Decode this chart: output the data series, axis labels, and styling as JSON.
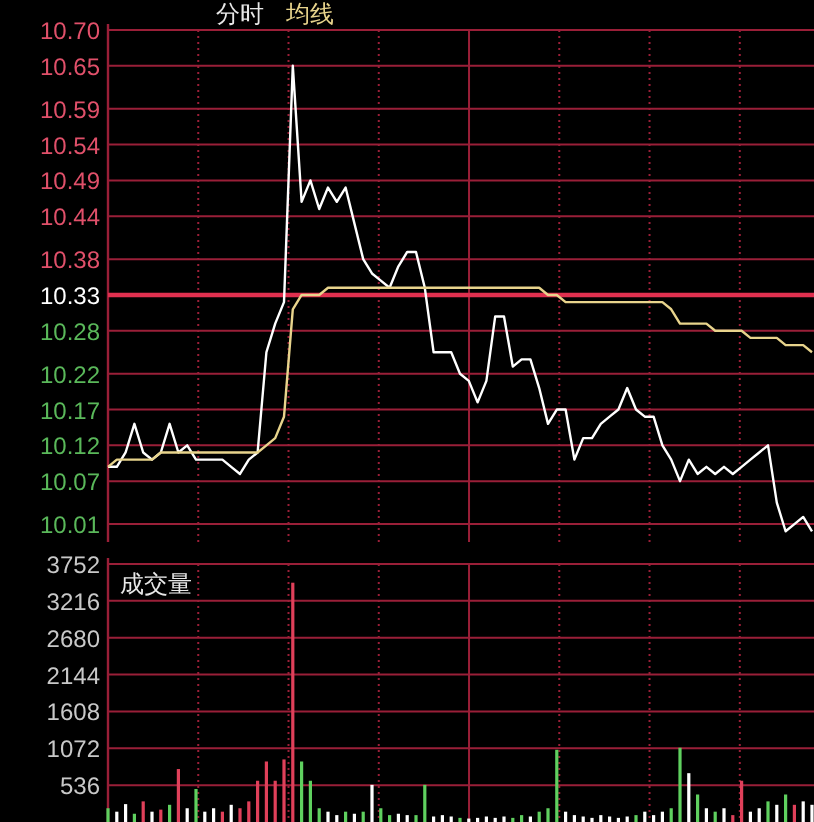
{
  "chart_data": [
    {
      "type": "line",
      "title": "分时",
      "categories": [
        null,
        null,
        null,
        null,
        null,
        null,
        null,
        null,
        null,
        null,
        null,
        null,
        null,
        null,
        null,
        null,
        null,
        null,
        null,
        null,
        null,
        null,
        null,
        null,
        null,
        null,
        null,
        null,
        null,
        null,
        null,
        null,
        null,
        null,
        null,
        null,
        null,
        null,
        null,
        null,
        null,
        null,
        null,
        null,
        null,
        null,
        null,
        null,
        null,
        null,
        null,
        null,
        null,
        null,
        null,
        null,
        null,
        null,
        null,
        null,
        null,
        null,
        null,
        null,
        null,
        null,
        null,
        null,
        null,
        null,
        null,
        null,
        null,
        null,
        null,
        null,
        null,
        null,
        null,
        null,
        null
      ],
      "series": [
        {
          "color": "#ffffff",
          "values": [
            10.09,
            10.09,
            10.11,
            10.15,
            10.11,
            10.1,
            10.11,
            10.15,
            10.11,
            10.12,
            10.1,
            10.1,
            10.1,
            10.1,
            10.09,
            10.08,
            10.1,
            10.11,
            10.25,
            10.29,
            10.32,
            10.65,
            10.46,
            10.49,
            10.45,
            10.48,
            10.46,
            10.48,
            10.43,
            10.38,
            10.36,
            10.35,
            10.34,
            10.37,
            10.39,
            10.39,
            10.34,
            10.25,
            10.25,
            10.25,
            10.22,
            10.21,
            10.18,
            10.21,
            10.3,
            10.3,
            10.23,
            10.24,
            10.24,
            10.2,
            10.15,
            10.17,
            10.17,
            10.1,
            10.13,
            10.13,
            10.15,
            10.16,
            10.17,
            10.2,
            10.17,
            10.16,
            10.16,
            10.12,
            10.1,
            10.07,
            10.1,
            10.08,
            10.09,
            10.08,
            10.09,
            10.08,
            10.09,
            10.1,
            10.11,
            10.12,
            10.04,
            10.0,
            10.01,
            10.02,
            10.0
          ]
        },
        {
          "name": "均线",
          "color": "#e8d48c",
          "values": [
            10.09,
            10.1,
            10.1,
            10.1,
            10.1,
            10.1,
            10.11,
            10.11,
            10.11,
            10.11,
            10.11,
            10.11,
            10.11,
            10.11,
            10.11,
            10.11,
            10.11,
            10.11,
            10.12,
            10.13,
            10.16,
            10.31,
            10.33,
            10.33,
            10.33,
            10.34,
            10.34,
            10.34,
            10.34,
            10.34,
            10.34,
            10.34,
            10.34,
            10.34,
            10.34,
            10.34,
            10.34,
            10.34,
            10.34,
            10.34,
            10.34,
            10.34,
            10.34,
            10.34,
            10.34,
            10.34,
            10.34,
            10.34,
            10.34,
            10.34,
            10.33,
            10.33,
            10.32,
            10.32,
            10.32,
            10.32,
            10.32,
            10.32,
            10.32,
            10.32,
            10.32,
            10.32,
            10.32,
            10.32,
            10.31,
            10.29,
            10.29,
            10.29,
            10.29,
            10.28,
            10.28,
            10.28,
            10.28,
            10.27,
            10.27,
            10.27,
            10.27,
            10.26,
            10.26,
            10.26,
            10.25
          ]
        }
      ],
      "ylim": [
        9.985,
        10.7
      ],
      "yticks": [
        {
          "value": 10.7,
          "label": "10.70"
        },
        10.65,
        10.59,
        10.54,
        10.49,
        10.44,
        10.38,
        10.33,
        10.28,
        10.22,
        10.17,
        10.12,
        10.07,
        10.01
      ],
      "grid": true,
      "ref_lines": [
        {
          "axis": "y",
          "value": 10.33,
          "color": "#e0304f"
        }
      ]
    },
    {
      "type": "bar",
      "title": "成交量",
      "categories": [
        null,
        null,
        null,
        null,
        null,
        null,
        null,
        null,
        null,
        null,
        null,
        null,
        null,
        null,
        null,
        null,
        null,
        null,
        null,
        null,
        null,
        null,
        null,
        null,
        null,
        null,
        null,
        null,
        null,
        null,
        null,
        null,
        null,
        null,
        null,
        null,
        null,
        null,
        null,
        null,
        null,
        null,
        null,
        null,
        null,
        null,
        null,
        null,
        null,
        null,
        null,
        null,
        null,
        null,
        null,
        null,
        null,
        null,
        null,
        null,
        null,
        null,
        null,
        null,
        null,
        null,
        null,
        null,
        null,
        null,
        null,
        null,
        null,
        null,
        null,
        null,
        null,
        null,
        null,
        null,
        null
      ],
      "values": [
        200,
        150,
        260,
        120,
        300,
        150,
        180,
        250,
        770,
        200,
        480,
        150,
        200,
        150,
        250,
        200,
        300,
        600,
        880,
        600,
        910,
        3480,
        880,
        600,
        200,
        150,
        100,
        150,
        120,
        150,
        540,
        200,
        100,
        120,
        100,
        100,
        540,
        80,
        100,
        80,
        60,
        50,
        60,
        80,
        60,
        80,
        60,
        100,
        80,
        150,
        200,
        1050,
        150,
        100,
        80,
        60,
        100,
        80,
        60,
        80,
        100,
        150,
        100,
        150,
        200,
        1080,
        710,
        400,
        200,
        150,
        200,
        100,
        600,
        150,
        200,
        300,
        250,
        400,
        250,
        300,
        250
      ],
      "colors": [
        "#5fd05f",
        "#ffffff",
        "#ffffff",
        "#5fd05f",
        "#e0405a",
        "#ffffff",
        "#e0405a",
        "#5fd05f",
        "#e0405a",
        "#ffffff",
        "#5fd05f",
        "#ffffff",
        "#ffffff",
        "#e0405a",
        "#ffffff",
        "#e0405a",
        "#e0405a",
        "#e0405a",
        "#e0405a",
        "#e0405a",
        "#e0405a",
        "#e0405a",
        "#5fd05f",
        "#5fd05f",
        "#5fd05f",
        "#ffffff",
        "#ffffff",
        "#5fd05f",
        "#ffffff",
        "#5fd05f",
        "#ffffff",
        "#5fd05f",
        "#5fd05f",
        "#ffffff",
        "#ffffff",
        "#5fd05f",
        "#5fd05f",
        "#ffffff",
        "#ffffff",
        "#ffffff",
        "#5fd05f",
        "#ffffff",
        "#ffffff",
        "#ffffff",
        "#ffffff",
        "#ffffff",
        "#5fd05f",
        "#5fd05f",
        "#ffffff",
        "#5fd05f",
        "#5fd05f",
        "#5fd05f",
        "#ffffff",
        "#ffffff",
        "#ffffff",
        "#ffffff",
        "#ffffff",
        "#ffffff",
        "#ffffff",
        "#ffffff",
        "#5fd05f",
        "#ffffff",
        "#ffffff",
        "#ffffff",
        "#5fd05f",
        "#5fd05f",
        "#ffffff",
        "#5fd05f",
        "#ffffff",
        "#5fd05f",
        "#ffffff",
        "#e0405a",
        "#e0405a",
        "#ffffff",
        "#ffffff",
        "#5fd05f",
        "#ffffff",
        "#5fd05f",
        "#e0405a",
        "#ffffff",
        "#ffffff"
      ],
      "ylim": [
        0,
        3752
      ],
      "yticks": [
        3752,
        3216,
        2680,
        2144,
        1608,
        1072,
        536
      ],
      "grid": true
    }
  ]
}
